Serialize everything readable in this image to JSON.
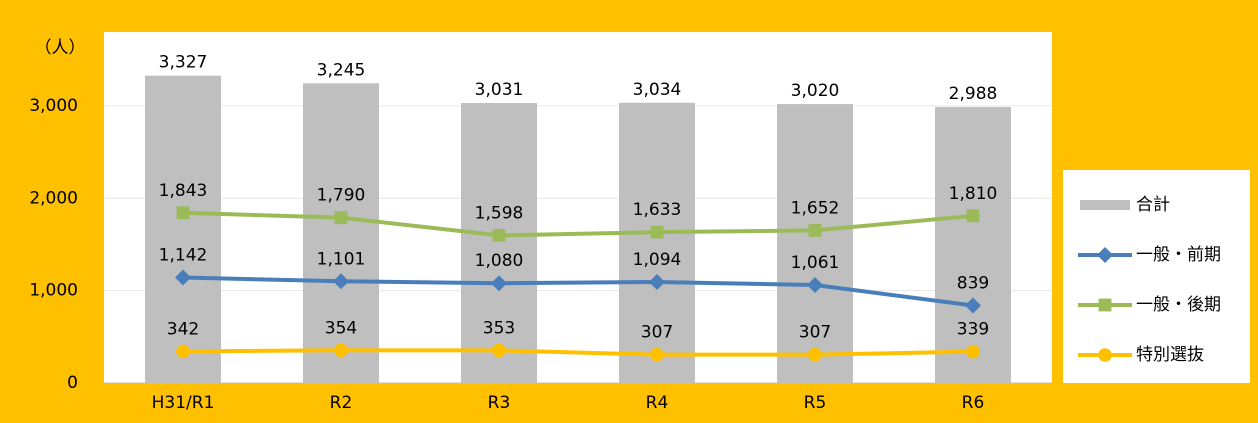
{
  "chart_data": {
    "type": "bar",
    "y_label": "（人）",
    "categories": [
      "H31/R1",
      "R2",
      "R3",
      "R4",
      "R5",
      "R6"
    ],
    "series": [
      {
        "name": "合計",
        "type": "bar",
        "color": "#bfbfbf",
        "values": [
          3327,
          3245,
          3031,
          3034,
          3020,
          2988
        ],
        "value_labels": [
          "3,327",
          "3,245",
          "3,031",
          "3,034",
          "3,020",
          "2,988"
        ]
      },
      {
        "name": "一般・前期",
        "type": "line",
        "marker": "diamond",
        "color": "#4a7ebb",
        "values": [
          1142,
          1101,
          1080,
          1094,
          1061,
          839
        ],
        "value_labels": [
          "1,142",
          "1,101",
          "1,080",
          "1,094",
          "1,061",
          "839"
        ]
      },
      {
        "name": "一般・後期",
        "type": "line",
        "marker": "square",
        "color": "#9bbb59",
        "values": [
          1843,
          1790,
          1598,
          1633,
          1652,
          1810
        ],
        "value_labels": [
          "1,843",
          "1,790",
          "1,598",
          "1,633",
          "1,652",
          "1,810"
        ]
      },
      {
        "name": "特別選抜",
        "type": "line",
        "marker": "circle",
        "color": "#ffc000",
        "values": [
          342,
          354,
          353,
          307,
          307,
          339
        ]
      }
    ],
    "ylim": [
      0,
      3800
    ],
    "yticks": [
      0,
      {
        "value": 1000,
        "label": "1,000"
      },
      {
        "value": 2000,
        "label": "2,000"
      },
      {
        "value": 3000,
        "label": "3,000"
      }
    ],
    "grid": true,
    "legend": "right"
  }
}
